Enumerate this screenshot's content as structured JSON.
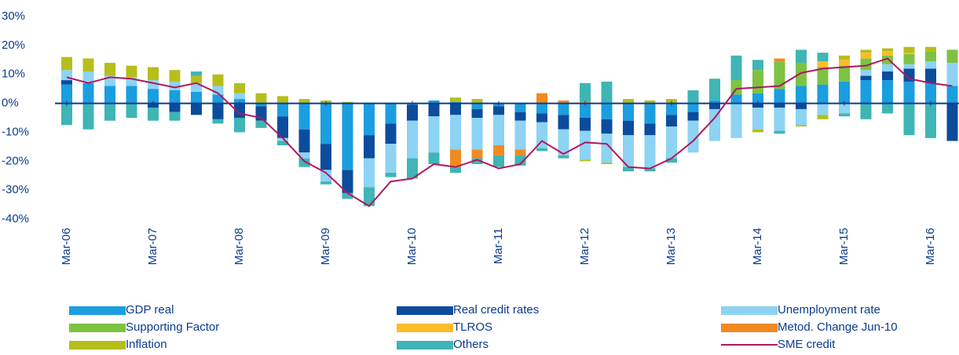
{
  "chart_data": {
    "type": "bar",
    "categories": [
      "Mar-06",
      null,
      null,
      null,
      "Mar-07",
      null,
      null,
      null,
      "Mar-08",
      null,
      null,
      null,
      "Mar-09",
      null,
      null,
      null,
      "Mar-10",
      null,
      null,
      null,
      "Mar-11",
      null,
      null,
      null,
      "Mar-12",
      null,
      null,
      null,
      "Mar-13",
      null,
      null,
      null,
      "Mar-14",
      null,
      null,
      null,
      "Mar-15",
      null,
      null,
      null,
      "Mar-16",
      null
    ],
    "series": [
      {
        "name": "GDP real",
        "color": "#1a9ee0",
        "values": [
          6.5,
          7,
          6,
          6,
          5,
          4.5,
          4,
          3,
          1.5,
          -1,
          -4.5,
          -9,
          -14,
          -23,
          -11,
          -7,
          -0.5,
          1,
          0.5,
          -2,
          -1,
          -3,
          -3.5,
          -4,
          -5,
          -5.5,
          -6,
          -7,
          -4,
          -3,
          1,
          3,
          3.5,
          5,
          6,
          6.5,
          7.5,
          8,
          8,
          7.5,
          7,
          6
        ]
      },
      {
        "name": "Real credit rates",
        "color": "#0b4c9c",
        "values": [
          1.5,
          0,
          0,
          0,
          -1.5,
          -3,
          -4,
          -5.5,
          -5,
          -5,
          -7.5,
          -8,
          -9,
          -8,
          -8,
          -7,
          -5.5,
          -4.5,
          -4,
          -3,
          -3,
          -3,
          -3,
          -5,
          -4.5,
          -5,
          -5,
          -4,
          -4,
          -3,
          -2,
          0,
          -1.5,
          -1.5,
          -2,
          0,
          0,
          1.5,
          3,
          4.5,
          5,
          -13
        ]
      },
      {
        "name": "Unemployment rate",
        "color": "#8dd3f3",
        "values": [
          3.5,
          4,
          3.5,
          3,
          3,
          3,
          3,
          3,
          2,
          0,
          -1,
          -2,
          -4,
          0,
          -10,
          -10,
          -13,
          -12.5,
          -12,
          -11,
          -10.5,
          -10,
          -9,
          -9,
          -10,
          -10,
          -11,
          -11.5,
          -11,
          -11,
          -11,
          -12,
          -7.5,
          -8,
          -5.5,
          -4,
          -3.5,
          2,
          2.5,
          1.5,
          2.5,
          8
        ]
      },
      {
        "name": "Supporting Factor",
        "color": "#7dc242",
        "values": [
          0,
          0,
          0,
          0,
          0,
          0,
          0,
          0,
          0,
          0,
          0,
          0,
          0,
          0,
          0,
          0,
          0,
          0,
          0,
          0,
          0,
          0,
          0,
          0,
          0,
          0,
          0,
          0,
          0,
          0,
          0,
          5,
          8,
          9.5,
          8,
          6,
          5.5,
          4,
          3,
          3.5,
          3.5,
          4.5
        ]
      },
      {
        "name": "TLROS",
        "color": "#fbbd2b",
        "values": [
          0,
          0,
          0,
          0,
          0,
          0,
          0,
          0,
          0,
          0,
          0,
          0,
          0,
          0,
          0,
          0,
          0,
          0,
          0,
          0,
          0,
          0,
          0,
          0,
          0,
          0,
          0,
          0,
          0,
          0,
          0,
          0,
          0,
          0,
          0,
          2,
          2,
          2,
          1.5,
          0.5,
          0,
          0
        ]
      },
      {
        "name": "Metod. Change Jun-10",
        "color": "#f18a21",
        "values": [
          0,
          0,
          0,
          0,
          0,
          0,
          0,
          0,
          0,
          0,
          0,
          0,
          0,
          0,
          0,
          0,
          0,
          0,
          -6,
          -3,
          -3.5,
          -2,
          3.5,
          1,
          0.5,
          0,
          0,
          0,
          0,
          0,
          0,
          0,
          0,
          1,
          0,
          0,
          0,
          0,
          0,
          0,
          0,
          0
        ]
      },
      {
        "name": "Inflation",
        "color": "#b5be1b",
        "values": [
          4.5,
          4.5,
          4.5,
          4,
          4.5,
          4,
          2.5,
          4,
          3.5,
          3.5,
          2.5,
          1.5,
          1,
          0.5,
          0,
          0,
          0,
          0,
          1.5,
          1.5,
          0,
          0,
          0,
          0,
          -0.5,
          -0.5,
          1.5,
          1,
          1.5,
          0,
          0,
          0,
          -1,
          0,
          -0.5,
          -1.5,
          1.5,
          1,
          1,
          2,
          1.5,
          0
        ]
      },
      {
        "name": "Others",
        "color": "#3fb5b5",
        "values": [
          -7.5,
          -9,
          -6,
          -5,
          -4.5,
          -3,
          1.5,
          -1.5,
          -5,
          -2.5,
          -1.5,
          -3,
          -1,
          -2,
          -6.5,
          -1.5,
          -7,
          -4,
          -2,
          -2,
          -4,
          -3.5,
          -1,
          -1,
          6.5,
          7.5,
          -1.5,
          -1,
          -1.5,
          4.5,
          7.5,
          8.5,
          3.5,
          -1,
          4.5,
          3,
          -1,
          -5.5,
          -3.5,
          -11,
          -12,
          0
        ]
      },
      {
        "name": "SME credit",
        "color": "#b0185e",
        "type": "line",
        "values": [
          9,
          7,
          9,
          8.5,
          7,
          5.5,
          7,
          3.5,
          -3.5,
          -5,
          -12,
          -20,
          -24,
          -31,
          -35.5,
          -27,
          -26,
          -21,
          -22,
          -19.5,
          -22.5,
          -21,
          -13,
          -17.5,
          -13.5,
          -14,
          -22,
          -22.5,
          -19,
          -13,
          -5,
          5,
          5.5,
          6,
          10.5,
          12,
          12.5,
          13,
          15.5,
          8.5,
          7,
          6
        ]
      }
    ],
    "ylim": [
      -40,
      30
    ],
    "yticks": [
      {
        "value": 30,
        "label": "30%"
      },
      {
        "value": 20,
        "label": "20%"
      },
      {
        "value": 10,
        "label": "10%"
      },
      {
        "value": 0,
        "label": "0%"
      },
      {
        "value": -10,
        "label": "-10%"
      },
      {
        "value": -20,
        "label": "-20%"
      },
      {
        "value": -30,
        "label": "-30%"
      },
      {
        "value": -40,
        "label": "-40%"
      }
    ],
    "grid": false,
    "legend": "bottom"
  }
}
